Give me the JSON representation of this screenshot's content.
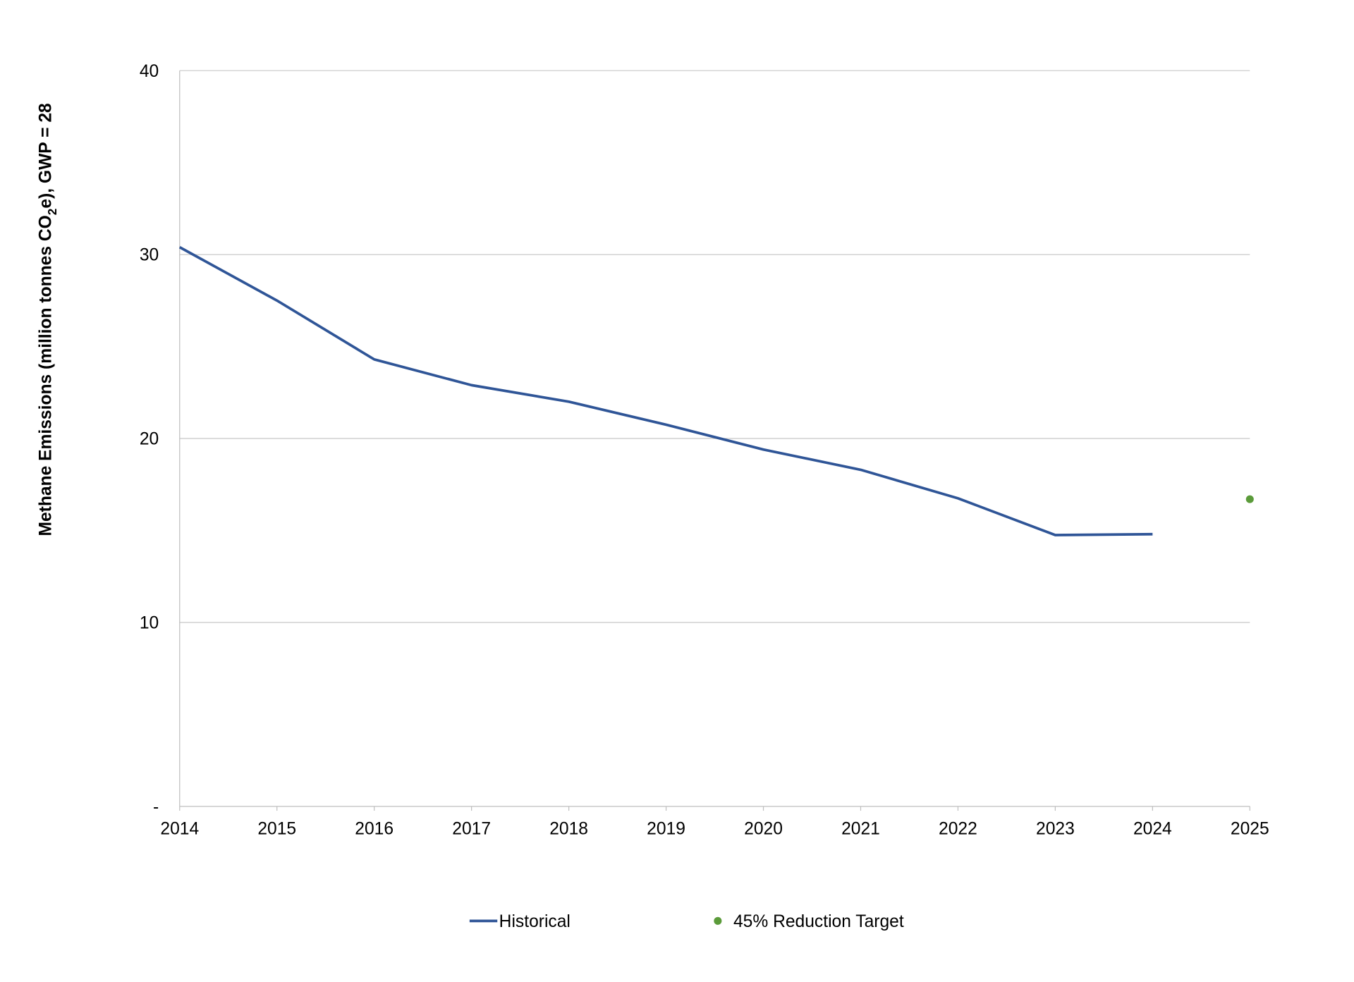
{
  "chart_data": {
    "type": "line",
    "title": "",
    "xlabel": "",
    "ylabel": "Methane Emissions (million tonnes CO₂e), GWP = 28",
    "ylabel_parts": {
      "before": "Methane Emissions (million tonnes CO",
      "sub": "2",
      "after": "e), GWP = 28"
    },
    "categories": [
      "2014",
      "2015",
      "2016",
      "2017",
      "2018",
      "2019",
      "2020",
      "2021",
      "2022",
      "2023",
      "2024",
      "2025"
    ],
    "ylim": [
      0,
      40
    ],
    "yticks": [
      0,
      10,
      20,
      30,
      40
    ],
    "ytick_labels": [
      "-",
      "10",
      "20",
      "30",
      "40"
    ],
    "grid": "horizontal",
    "legend_position": "bottom",
    "series": [
      {
        "name": "Historical",
        "type": "line",
        "color": "#2F5597",
        "x": [
          "2014",
          "2015",
          "2016",
          "2017",
          "2018",
          "2019",
          "2020",
          "2021",
          "2022",
          "2023",
          "2024"
        ],
        "values": [
          30.4,
          27.5,
          24.3,
          22.9,
          22.0,
          20.75,
          19.4,
          18.3,
          16.75,
          14.75,
          14.8
        ]
      },
      {
        "name": "45% Reduction Target",
        "type": "scatter",
        "color": "#5B9B3A",
        "x": [
          "2025"
        ],
        "values": [
          16.7
        ]
      }
    ]
  }
}
